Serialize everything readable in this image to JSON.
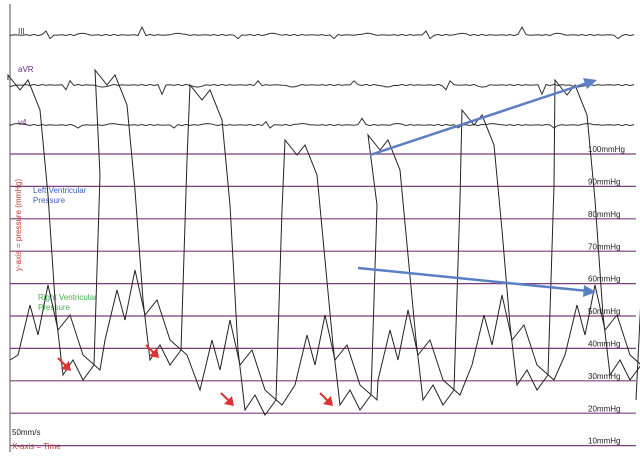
{
  "leads": [
    "III",
    "aVR",
    "v4"
  ],
  "annotations": {
    "lv_label": [
      "Left Ventricular",
      "Pressure"
    ],
    "rv_label": [
      "Right Ventricular",
      "Pressure"
    ],
    "y_axis": "y-axis = pressure (mmHg)",
    "speed": "50mm/s",
    "x_axis": "X-axis = Time"
  },
  "scale": [
    "100mmHg",
    "90mmHg",
    "80mmHg",
    "70mmHg",
    "60mmHg",
    "50mmHg",
    "40mmHg",
    "30mmHg",
    "20mmHg",
    "10mmHg"
  ]
}
